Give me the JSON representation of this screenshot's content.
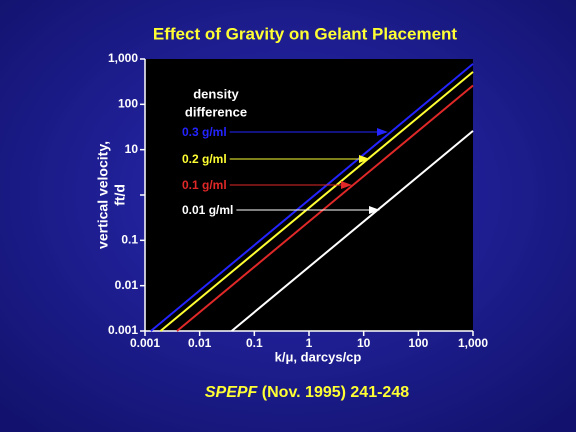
{
  "chart_data": {
    "type": "line",
    "title": "Effect of Gravity on Gelant Placement",
    "xlabel": "k/μ, darcys/cp",
    "ylabel_lines": [
      "vertical velocity,",
      "ft/d"
    ],
    "legend_title": [
      "density",
      "difference"
    ],
    "citation": {
      "journal": "SPEPF",
      "detail": "(Nov. 1995) 241-248"
    },
    "xscale": "log",
    "yscale": "log",
    "xlim": [
      0.001,
      1000
    ],
    "ylim": [
      0.001,
      1000
    ],
    "xticks": [
      0.001,
      0.01,
      0.1,
      1,
      10,
      100,
      {
        "value": 1000,
        "label": "1,000"
      }
    ],
    "yticks": [
      0.001,
      0.01,
      0.1,
      {
        "value": 1,
        "label": null
      },
      10,
      100,
      {
        "value": 1000,
        "label": "1,000"
      }
    ],
    "grid": false,
    "series": [
      {
        "name": "0.3 g/ml",
        "color": "#2424ff",
        "x": [
          0.00128,
          1000
        ],
        "values": [
          0.001,
          780
        ]
      },
      {
        "name": "0.2 g/ml",
        "color": "#ffff33",
        "x": [
          0.00192,
          1000
        ],
        "values": [
          0.001,
          520
        ]
      },
      {
        "name": "0.1 g/ml",
        "color": "#e02828",
        "x": [
          0.00385,
          1000
        ],
        "values": [
          0.001,
          260
        ]
      },
      {
        "name": "0.01 g/ml",
        "color": "#ffffff",
        "x": [
          0.0385,
          1000
        ],
        "values": [
          0.001,
          26
        ]
      }
    ]
  }
}
